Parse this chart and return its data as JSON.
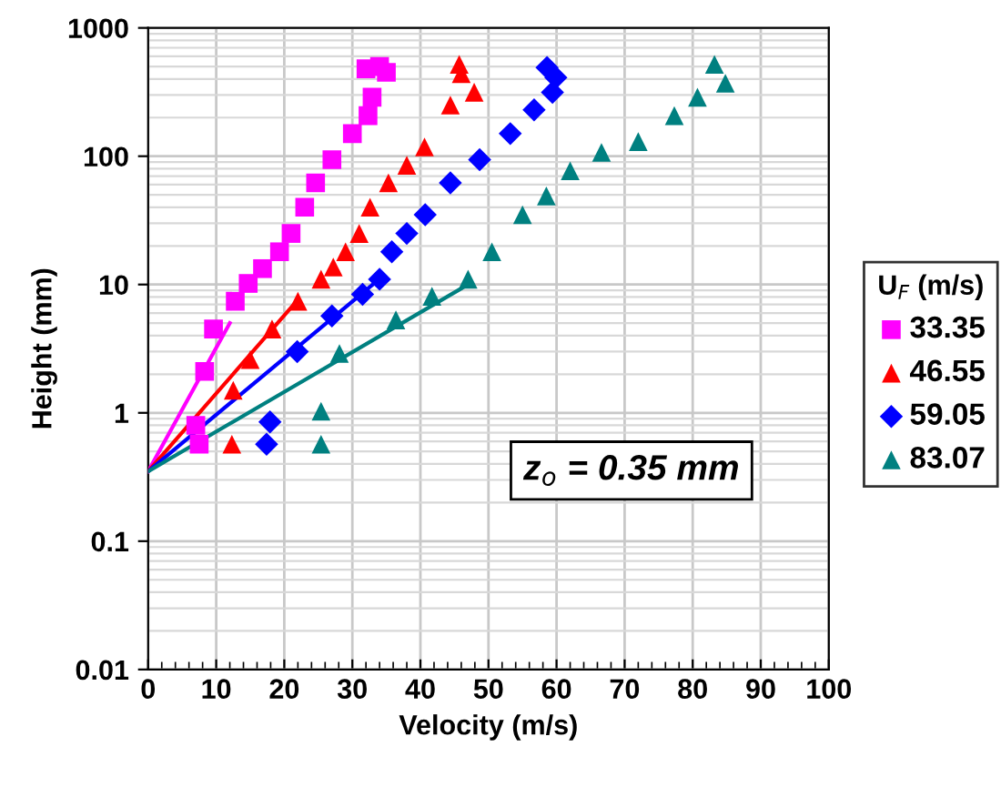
{
  "chart_data": {
    "type": "scatter",
    "xlabel": "Velocity (m/s)",
    "ylabel": "Height (mm)",
    "legend_title": "U$_{F}$ (m/s)",
    "legend": "right",
    "grid": true,
    "log": "y",
    "xlim": [
      0,
      100
    ],
    "xticks": [
      0,
      10,
      20,
      30,
      40,
      50,
      60,
      70,
      80,
      90,
      100
    ],
    "ylim": [
      0.01,
      1000
    ],
    "yticks": [
      0.01,
      0.1,
      1,
      10,
      100,
      1000
    ],
    "annotations": [
      "z$_{o}$ = 0.35 mm"
    ],
    "series": [
      {
        "name": "33.35",
        "color": "#ff00ff",
        "marker": "square",
        "x": [
          7.5,
          7,
          8.3,
          9.6,
          12.8,
          14.7,
          16.8,
          19.3,
          21,
          23,
          24.6,
          27,
          30,
          32.3,
          32.9,
          32,
          34,
          35
        ],
        "values": [
          0.57,
          0.8,
          2.1,
          4.5,
          7.4,
          10.2,
          13.3,
          18,
          25,
          40,
          62,
          94,
          150,
          207,
          288,
          480,
          500,
          450
        ]
      },
      {
        "name": "46.55",
        "color": "#ff0000",
        "marker": "triangle",
        "x": [
          12.3,
          12.5,
          15,
          18.2,
          22,
          25.4,
          27.2,
          29,
          31,
          32.6,
          35.3,
          38,
          40.6,
          44.4,
          46,
          45.7,
          47.9
        ],
        "values": [
          0.57,
          1.5,
          2.6,
          4.5,
          7.4,
          11,
          13.7,
          18,
          25,
          40,
          62,
          85,
          118,
          250,
          440,
          520,
          315
        ]
      },
      {
        "name": "59.05",
        "color": "#0000ff",
        "marker": "diamond",
        "x": [
          17.4,
          17.9,
          21.9,
          27,
          31.5,
          34,
          35.8,
          38,
          40.7,
          44.4,
          48.7,
          53.2,
          56.7,
          59.4,
          59.9,
          58.6
        ],
        "values": [
          0.57,
          0.85,
          3.0,
          5.7,
          8.4,
          11,
          18,
          25,
          35,
          62,
          94,
          150,
          230,
          315,
          410,
          490
        ]
      },
      {
        "name": "83.07",
        "color": "#008080",
        "marker": "triangle",
        "x": [
          25.4,
          25.4,
          28.1,
          36.4,
          41.7,
          47,
          50.5,
          55,
          58.5,
          62,
          66.6,
          72,
          77.3,
          80.7,
          83.2,
          84.8
        ],
        "values": [
          0.57,
          1.03,
          2.9,
          5.3,
          8.1,
          11,
          18,
          35,
          49,
          77,
          107,
          130,
          207,
          288,
          520,
          370
        ]
      },
      {
        "type": "line",
        "color": "#ff00ff",
        "x": [
          0,
          12
        ],
        "values": [
          0.35,
          5
        ]
      },
      {
        "type": "line",
        "color": "#ff0000",
        "x": [
          0,
          22
        ],
        "values": [
          0.35,
          7.6
        ]
      },
      {
        "type": "line",
        "color": "#0000ff",
        "x": [
          0,
          33
        ],
        "values": [
          0.35,
          10
        ]
      },
      {
        "type": "line",
        "color": "#008080",
        "x": [
          0,
          47
        ],
        "values": [
          0.35,
          10
        ]
      }
    ]
  }
}
